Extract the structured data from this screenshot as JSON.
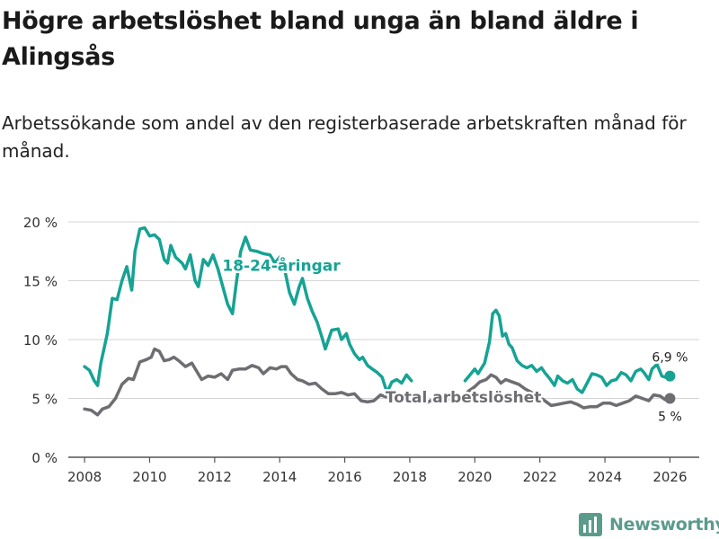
{
  "title": "Högre arbetslöshet bland unga än bland äldre i Alingsås",
  "subtitle": "Arbetssökande som andel av den registerbaserade arbetskraften månad för månad.",
  "brand": {
    "name": "Newsworthy",
    "icon": "bar-chart-logo-icon",
    "color": "#5b9b8c"
  },
  "chart_data": {
    "type": "line",
    "xlim": [
      2007.5,
      2026.9
    ],
    "ylim": [
      0,
      20
    ],
    "y_ticks": [
      0,
      5,
      10,
      15,
      20
    ],
    "y_tick_labels": [
      "0 %",
      "5 %",
      "10 %",
      "15 %",
      "20 %"
    ],
    "x_ticks": [
      2008,
      2010,
      2012,
      2014,
      2016,
      2018,
      2020,
      2022,
      2024,
      2026
    ],
    "x_tick_labels": [
      "2008",
      "2010",
      "2012",
      "2014",
      "2016",
      "2018",
      "2020",
      "2022",
      "2024",
      "2026"
    ],
    "grid": "horizontal",
    "series": [
      {
        "name": "18-24-åringar",
        "label": "18-24-åringar",
        "color": "#16a394",
        "end_label": "6,9 %",
        "points": [
          [
            2008.0,
            7.7
          ],
          [
            2008.15,
            7.4
          ],
          [
            2008.3,
            6.5
          ],
          [
            2008.4,
            6.1
          ],
          [
            2008.5,
            8.0
          ],
          [
            2008.7,
            10.5
          ],
          [
            2008.85,
            13.5
          ],
          [
            2009.0,
            13.4
          ],
          [
            2009.15,
            15.0
          ],
          [
            2009.3,
            16.2
          ],
          [
            2009.45,
            14.2
          ],
          [
            2009.55,
            17.5
          ],
          [
            2009.7,
            19.4
          ],
          [
            2009.85,
            19.5
          ],
          [
            2010.0,
            18.8
          ],
          [
            2010.15,
            18.9
          ],
          [
            2010.3,
            18.5
          ],
          [
            2010.45,
            16.8
          ],
          [
            2010.55,
            16.5
          ],
          [
            2010.65,
            18.0
          ],
          [
            2010.8,
            17.0
          ],
          [
            2011.0,
            16.5
          ],
          [
            2011.1,
            16.0
          ],
          [
            2011.25,
            17.2
          ],
          [
            2011.4,
            15.0
          ],
          [
            2011.5,
            14.5
          ],
          [
            2011.65,
            16.8
          ],
          [
            2011.8,
            16.3
          ],
          [
            2011.95,
            17.2
          ],
          [
            2012.1,
            16.0
          ],
          [
            2012.25,
            14.5
          ],
          [
            2012.4,
            13.0
          ],
          [
            2012.55,
            12.2
          ],
          [
            2012.65,
            14.5
          ],
          [
            2012.8,
            17.5
          ],
          [
            2012.95,
            18.7
          ],
          [
            2013.1,
            17.6
          ],
          [
            2013.3,
            17.5
          ],
          [
            2013.5,
            17.3
          ],
          [
            2013.7,
            17.2
          ],
          [
            2013.85,
            16.5
          ],
          [
            2014.0,
            17.0
          ],
          [
            2014.15,
            16.0
          ],
          [
            2014.3,
            14.0
          ],
          [
            2014.45,
            13.0
          ],
          [
            2014.6,
            14.5
          ],
          [
            2014.7,
            15.2
          ],
          [
            2014.85,
            13.5
          ],
          [
            2015.0,
            12.4
          ],
          [
            2015.15,
            11.5
          ],
          [
            2015.3,
            10.2
          ],
          [
            2015.4,
            9.2
          ],
          [
            2015.5,
            10.0
          ],
          [
            2015.6,
            10.8
          ],
          [
            2015.8,
            10.9
          ],
          [
            2015.9,
            10.0
          ],
          [
            2016.05,
            10.5
          ],
          [
            2016.15,
            9.6
          ],
          [
            2016.3,
            8.8
          ],
          [
            2016.45,
            8.3
          ],
          [
            2016.55,
            8.5
          ],
          [
            2016.7,
            7.8
          ],
          [
            2016.85,
            7.5
          ],
          [
            2017.0,
            7.2
          ],
          [
            2017.15,
            6.8
          ],
          [
            2017.3,
            5.5
          ],
          [
            2017.45,
            6.4
          ],
          [
            2017.6,
            6.6
          ],
          [
            2017.75,
            6.3
          ],
          [
            2017.9,
            7.0
          ],
          [
            2018.05,
            6.5
          ]
        ],
        "points2": [
          [
            2019.7,
            6.5
          ],
          [
            2019.85,
            7.0
          ],
          [
            2020.0,
            7.5
          ],
          [
            2020.1,
            7.1
          ],
          [
            2020.3,
            8.0
          ],
          [
            2020.45,
            9.8
          ],
          [
            2020.55,
            12.2
          ],
          [
            2020.65,
            12.5
          ],
          [
            2020.75,
            12.0
          ],
          [
            2020.85,
            10.3
          ],
          [
            2020.95,
            10.5
          ],
          [
            2021.05,
            9.6
          ],
          [
            2021.15,
            9.3
          ],
          [
            2021.3,
            8.2
          ],
          [
            2021.45,
            7.8
          ],
          [
            2021.6,
            7.6
          ],
          [
            2021.75,
            7.8
          ],
          [
            2021.9,
            7.3
          ],
          [
            2022.05,
            7.6
          ],
          [
            2022.15,
            7.2
          ],
          [
            2022.3,
            6.7
          ],
          [
            2022.45,
            6.1
          ],
          [
            2022.55,
            6.9
          ],
          [
            2022.7,
            6.5
          ],
          [
            2022.85,
            6.3
          ],
          [
            2023.0,
            6.6
          ],
          [
            2023.15,
            5.8
          ],
          [
            2023.3,
            5.5
          ],
          [
            2023.45,
            6.3
          ],
          [
            2023.6,
            7.1
          ],
          [
            2023.75,
            7.0
          ],
          [
            2023.9,
            6.8
          ],
          [
            2024.05,
            6.1
          ],
          [
            2024.2,
            6.5
          ],
          [
            2024.35,
            6.6
          ],
          [
            2024.5,
            7.2
          ],
          [
            2024.65,
            7.0
          ],
          [
            2024.8,
            6.5
          ],
          [
            2024.95,
            7.3
          ],
          [
            2025.1,
            7.5
          ],
          [
            2025.2,
            7.2
          ],
          [
            2025.35,
            6.6
          ],
          [
            2025.45,
            7.5
          ],
          [
            2025.6,
            7.9
          ],
          [
            2025.75,
            6.9
          ],
          [
            2025.85,
            6.8
          ],
          [
            2026.0,
            6.9
          ]
        ]
      },
      {
        "name": "Total arbetslöshet",
        "label": "Total arbetslöshet",
        "color": "#6d6d72",
        "end_label": "5 %",
        "points": [
          [
            2008.0,
            4.1
          ],
          [
            2008.2,
            4.0
          ],
          [
            2008.4,
            3.6
          ],
          [
            2008.55,
            4.1
          ],
          [
            2008.75,
            4.3
          ],
          [
            2008.95,
            5.0
          ],
          [
            2009.15,
            6.2
          ],
          [
            2009.35,
            6.7
          ],
          [
            2009.5,
            6.6
          ],
          [
            2009.7,
            8.1
          ],
          [
            2009.9,
            8.3
          ],
          [
            2010.05,
            8.5
          ],
          [
            2010.15,
            9.2
          ],
          [
            2010.3,
            9.0
          ],
          [
            2010.45,
            8.2
          ],
          [
            2010.6,
            8.3
          ],
          [
            2010.75,
            8.5
          ],
          [
            2010.9,
            8.2
          ],
          [
            2011.1,
            7.7
          ],
          [
            2011.3,
            8.0
          ],
          [
            2011.45,
            7.3
          ],
          [
            2011.6,
            6.6
          ],
          [
            2011.8,
            6.9
          ],
          [
            2012.0,
            6.8
          ],
          [
            2012.2,
            7.1
          ],
          [
            2012.4,
            6.6
          ],
          [
            2012.55,
            7.4
          ],
          [
            2012.75,
            7.5
          ],
          [
            2012.95,
            7.5
          ],
          [
            2013.15,
            7.8
          ],
          [
            2013.35,
            7.6
          ],
          [
            2013.5,
            7.1
          ],
          [
            2013.7,
            7.6
          ],
          [
            2013.9,
            7.5
          ],
          [
            2014.05,
            7.7
          ],
          [
            2014.2,
            7.7
          ],
          [
            2014.35,
            7.1
          ],
          [
            2014.55,
            6.6
          ],
          [
            2014.7,
            6.5
          ],
          [
            2014.9,
            6.2
          ],
          [
            2015.1,
            6.3
          ],
          [
            2015.3,
            5.8
          ],
          [
            2015.5,
            5.4
          ],
          [
            2015.7,
            5.4
          ],
          [
            2015.9,
            5.5
          ],
          [
            2016.1,
            5.3
          ],
          [
            2016.3,
            5.4
          ],
          [
            2016.5,
            4.8
          ],
          [
            2016.7,
            4.7
          ],
          [
            2016.9,
            4.8
          ],
          [
            2017.1,
            5.3
          ],
          [
            2017.3,
            5.1
          ],
          [
            2017.5,
            4.7
          ],
          [
            2017.7,
            4.9
          ],
          [
            2017.9,
            5.2
          ],
          [
            2018.1,
            5.0
          ],
          [
            2018.3,
            4.9
          ],
          [
            2018.5,
            4.6
          ],
          [
            2018.7,
            4.9
          ],
          [
            2018.9,
            5.0
          ],
          [
            2019.1,
            4.9
          ],
          [
            2019.3,
            5.0
          ],
          [
            2019.5,
            4.8
          ],
          [
            2019.65,
            5.1
          ],
          [
            2019.8,
            5.6
          ],
          [
            2020.0,
            6.0
          ],
          [
            2020.15,
            6.4
          ],
          [
            2020.35,
            6.6
          ],
          [
            2020.5,
            7.0
          ],
          [
            2020.65,
            6.8
          ],
          [
            2020.8,
            6.3
          ],
          [
            2020.95,
            6.6
          ],
          [
            2021.15,
            6.4
          ],
          [
            2021.35,
            6.2
          ],
          [
            2021.55,
            5.8
          ],
          [
            2021.75,
            5.5
          ],
          [
            2021.95,
            5.2
          ],
          [
            2022.15,
            4.8
          ],
          [
            2022.35,
            4.4
          ],
          [
            2022.55,
            4.5
          ],
          [
            2022.75,
            4.6
          ],
          [
            2022.95,
            4.7
          ],
          [
            2023.15,
            4.5
          ],
          [
            2023.35,
            4.2
          ],
          [
            2023.55,
            4.3
          ],
          [
            2023.75,
            4.3
          ],
          [
            2023.95,
            4.6
          ],
          [
            2024.15,
            4.6
          ],
          [
            2024.35,
            4.4
          ],
          [
            2024.55,
            4.6
          ],
          [
            2024.75,
            4.8
          ],
          [
            2024.95,
            5.2
          ],
          [
            2025.15,
            5.0
          ],
          [
            2025.35,
            4.8
          ],
          [
            2025.5,
            5.3
          ],
          [
            2025.7,
            5.2
          ],
          [
            2025.85,
            4.9
          ],
          [
            2026.0,
            5.0
          ]
        ]
      }
    ]
  }
}
